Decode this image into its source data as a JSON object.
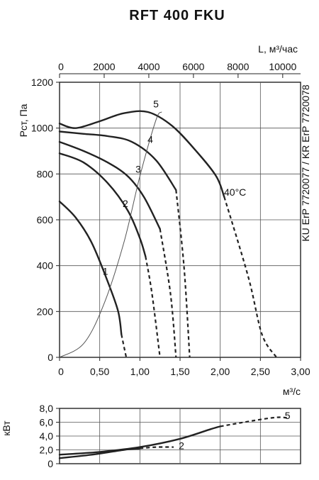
{
  "chart_data": [
    {
      "type": "line",
      "title": "RFT 400 FKU",
      "ylabel": "Pст, Па",
      "xlabel": "м³/с",
      "x2label": "L, м³/час",
      "side_label": "KU ErP 7720077 / KR ErP 7720078",
      "xlim": [
        0,
        3.0
      ],
      "ylim": [
        0,
        1200
      ],
      "x2lim": [
        0,
        10800
      ],
      "grid": true,
      "x_ticks": [
        "0",
        "0,50",
        "1,00",
        "1,50",
        "2,00",
        "2,50",
        "3,00"
      ],
      "x_tick_values": [
        0,
        0.5,
        1.0,
        1.5,
        2.0,
        2.5,
        3.0
      ],
      "y_ticks": [
        "0",
        "200",
        "400",
        "600",
        "800",
        "1000",
        "1200"
      ],
      "y_tick_values": [
        0,
        200,
        400,
        600,
        800,
        1000,
        1200
      ],
      "x2_ticks": [
        "0",
        "2000",
        "4000",
        "6000",
        "8000",
        "10000"
      ],
      "x2_tick_values": [
        0,
        2000,
        4000,
        6000,
        8000,
        10000
      ],
      "annotation": "40°C",
      "series": [
        {
          "name": "1",
          "solid": [
            [
              0,
              680
            ],
            [
              0.2,
              610
            ],
            [
              0.4,
              500
            ],
            [
              0.6,
              330
            ],
            [
              0.73,
              200
            ],
            [
              0.77,
              100
            ]
          ],
          "dashed": [
            [
              0.77,
              100
            ],
            [
              0.83,
              0
            ]
          ]
        },
        {
          "name": "2",
          "solid": [
            [
              0,
              890
            ],
            [
              0.3,
              850
            ],
            [
              0.6,
              760
            ],
            [
              0.85,
              640
            ],
            [
              1.0,
              520
            ],
            [
              1.07,
              440
            ]
          ],
          "dashed": [
            [
              1.07,
              440
            ],
            [
              1.15,
              280
            ],
            [
              1.25,
              0
            ]
          ]
        },
        {
          "name": "3",
          "solid": [
            [
              0,
              940
            ],
            [
              0.3,
              900
            ],
            [
              0.6,
              850
            ],
            [
              0.85,
              790
            ],
            [
              1.05,
              700
            ],
            [
              1.25,
              560
            ]
          ],
          "dashed": [
            [
              1.25,
              560
            ],
            [
              1.38,
              280
            ],
            [
              1.45,
              0
            ]
          ]
        },
        {
          "name": "4",
          "solid": [
            [
              0,
              985
            ],
            [
              0.3,
              975
            ],
            [
              0.6,
              965
            ],
            [
              0.9,
              940
            ],
            [
              1.2,
              860
            ],
            [
              1.45,
              730
            ]
          ],
          "dashed": [
            [
              1.45,
              730
            ],
            [
              1.55,
              390
            ],
            [
              1.62,
              0
            ]
          ]
        },
        {
          "name": "5",
          "solid": [
            [
              0,
              1020
            ],
            [
              0.2,
              1000
            ],
            [
              0.5,
              1030
            ],
            [
              0.8,
              1065
            ],
            [
              1.1,
              1070
            ],
            [
              1.4,
              1010
            ],
            [
              1.7,
              900
            ],
            [
              1.95,
              790
            ],
            [
              2.05,
              700
            ]
          ],
          "dashed": [
            [
              2.05,
              700
            ],
            [
              2.35,
              350
            ],
            [
              2.52,
              100
            ],
            [
              2.7,
              0
            ]
          ]
        },
        {
          "name": "40°C",
          "solid": [
            [
              0,
              0
            ],
            [
              0.3,
              60
            ],
            [
              0.55,
              230
            ],
            [
              0.8,
              500
            ],
            [
              1.0,
              790
            ],
            [
              1.2,
              1035
            ],
            [
              1.27,
              1070
            ]
          ],
          "dashed": []
        }
      ]
    },
    {
      "type": "line",
      "ylabel": "кВт",
      "xlim": [
        0,
        3.0
      ],
      "ylim": [
        0,
        8.0
      ],
      "y_ticks": [
        "0",
        "2,0",
        "4,0",
        "6,0",
        "8,0"
      ],
      "y_tick_values": [
        0,
        2,
        4,
        6,
        8
      ],
      "grid": true,
      "series": [
        {
          "name": "5",
          "solid": [
            [
              0,
              1.3
            ],
            [
              0.5,
              1.7
            ],
            [
              1.0,
              2.4
            ],
            [
              1.5,
              3.6
            ],
            [
              1.88,
              5.0
            ],
            [
              2.0,
              5.4
            ]
          ],
          "dashed": [
            [
              2.0,
              5.4
            ],
            [
              2.4,
              6.2
            ],
            [
              2.7,
              6.7
            ],
            [
              2.85,
              6.6
            ]
          ]
        },
        {
          "name": "2",
          "solid": [
            [
              0,
              0.8
            ],
            [
              0.4,
              1.3
            ],
            [
              0.8,
              2.0
            ],
            [
              1.0,
              2.2
            ]
          ],
          "dashed": [
            [
              1.0,
              2.2
            ],
            [
              1.2,
              2.4
            ],
            [
              1.42,
              2.4
            ]
          ]
        }
      ]
    }
  ]
}
